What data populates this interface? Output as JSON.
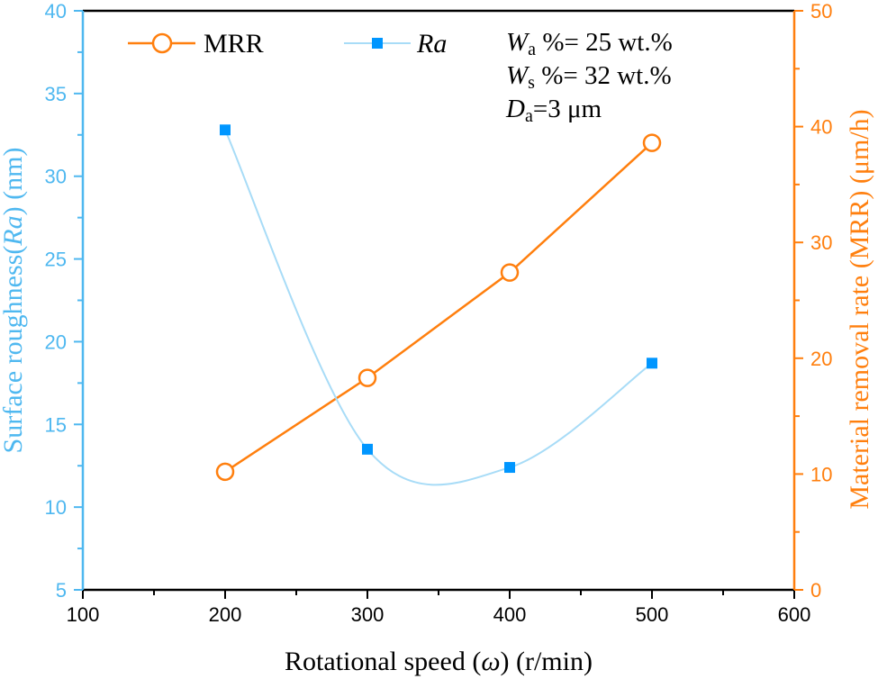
{
  "chart_data": {
    "type": "line",
    "title": "",
    "xlabel": "Rotational speed (ω) (r/min)",
    "xlabel_parts": {
      "pre": "Rotational speed (",
      "italic": "ω",
      "post": ") (r/min)"
    },
    "ylabel_left": "Surface roughness(Ra) (nm)",
    "ylabel_left_parts": {
      "pre": "Surface roughness(",
      "italic": "Ra",
      "post": ") (nm)"
    },
    "ylabel_right": "Material removal rate (MRR) (μm/h)",
    "xlim": [
      100,
      600
    ],
    "ylim_left": [
      5,
      40
    ],
    "ylim_right": [
      0,
      50
    ],
    "x_ticks": [
      100,
      200,
      300,
      400,
      500,
      600
    ],
    "y_left_ticks": [
      5,
      10,
      15,
      20,
      25,
      30,
      35,
      40
    ],
    "y_right_ticks": [
      0,
      10,
      20,
      30,
      40,
      50
    ],
    "grid": false,
    "legend_position": "top-left",
    "x": [
      200,
      300,
      400,
      500
    ],
    "series": [
      {
        "name": "MRR",
        "axis": "right",
        "color": "#ff7f0e",
        "marker": "open-circle",
        "values": [
          10.2,
          18.3,
          27.4,
          38.6
        ]
      },
      {
        "name": "Ra",
        "axis": "left",
        "color": "#0096ff",
        "line_color": "#a8dcf7",
        "marker": "filled-square",
        "smooth": true,
        "values": [
          32.8,
          13.5,
          12.4,
          18.7
        ]
      }
    ],
    "annotations": [
      {
        "main": "W",
        "sub": "a",
        "rest": " %= 25 wt.%"
      },
      {
        "main": "W",
        "sub": "s",
        "rest": " %= 32 wt.%"
      },
      {
        "main": "D",
        "sub": "a",
        "rest": "=3 μm"
      }
    ],
    "axis_colors": {
      "left": "#4fb8f0",
      "right": "#ff7f0e",
      "bottom": "#000000"
    }
  }
}
